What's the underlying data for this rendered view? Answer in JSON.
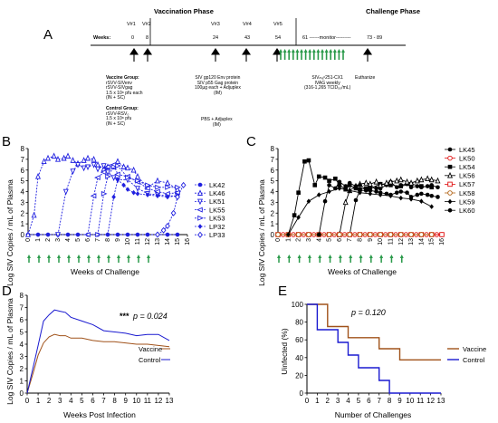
{
  "panel_a": {
    "label": "A",
    "vaccination_phase": "Vaccination Phase",
    "challenge_phase": "Challenge Phase",
    "weeks_label": "Weeks:",
    "vaccinations": [
      {
        "v": "V#1",
        "week": "0"
      },
      {
        "v": "V#2",
        "week": "8"
      },
      {
        "v": "V#3",
        "week": "24"
      },
      {
        "v": "V#4",
        "week": "43"
      },
      {
        "v": "V#5",
        "week": "54"
      }
    ],
    "monitor_text": "61 ------monitor---------",
    "euth_weeks": "73 - 89",
    "vaccine_group_title": "Vaccine Group:",
    "vaccine_group_lines": [
      "rSVV-SIVenv",
      "rSVV-SIVgag",
      "1.5 x 10⁸ pfu each",
      "(IN + SC)"
    ],
    "control_group_title": "Control Group:",
    "control_group_lines": [
      "rSVV-RSV₀",
      "1.5 x 10⁸ pfu",
      "(IN + SC)"
    ],
    "boost_vaccine_lines": [
      "SIV gp120 Env protein",
      "SIV p55 Gag protein",
      "100µg each + Adjuplex",
      "(IM)"
    ],
    "boost_control_lines": [
      "PBS + Adjuplex",
      "(IM)"
    ],
    "challenge_lines": [
      "SIVₘₐᶜ251-CX1",
      "IVAG weekly",
      "(316-1,265 TCID₅₀/mL)"
    ],
    "euthanize": "Euthanize"
  },
  "panel_b": {
    "label": "B",
    "ylabel": "Log SIV Copies / mL of Plasma",
    "xlabel": "Weeks of Challenge",
    "legend": [
      "LK42",
      "LK46",
      "LK51",
      "LK55",
      "LK53",
      "LP32",
      "LP33"
    ],
    "color": "#2020e0"
  },
  "panel_c": {
    "label": "C",
    "ylabel": "Log SIV Copies / mL of Plasma",
    "xlabel": "Weeks of Challenge",
    "legend": [
      "LK45",
      "LK50",
      "LK54",
      "LK56",
      "LK57",
      "LK58",
      "LK59",
      "LK60"
    ],
    "legend_colors": [
      "#000000",
      "#e01010",
      "#000000",
      "#000000",
      "#e01010",
      "#b06010",
      "#000000",
      "#000000"
    ]
  },
  "panel_d": {
    "label": "D",
    "ylabel": "Log SIV Copies / mL of Plasma",
    "xlabel": "Weeks Post Infection",
    "pvalue_stars": "***",
    "pvalue_text": "p = 0.024",
    "legend": [
      "Vaccine",
      "Control"
    ]
  },
  "panel_e": {
    "label": "E",
    "ylabel": "Uinfected (%)",
    "xlabel": "Number of Challenges",
    "pvalue_text": "p = 0.120",
    "legend": [
      "Vaccine",
      "Control"
    ]
  },
  "colors": {
    "vaccine_blue": "#2020e0",
    "control_black": "#000000",
    "brown": "#a0521a",
    "navy": "#1a1ad0",
    "arrow_green": "#2a9a4a"
  },
  "chart_data": [
    {
      "type": "line",
      "panel": "B",
      "ylabel": "Log SIV Copies / mL of Plasma",
      "xlabel": "Weeks of Challenge",
      "ylim": [
        0,
        8
      ],
      "xticks": [
        "0",
        "1",
        "2",
        "3",
        "4",
        "5",
        "6",
        "7",
        "8",
        "9",
        "10",
        "11",
        "12",
        "13",
        "14",
        "15",
        "16"
      ],
      "challenge_weeks": [
        0,
        1,
        2,
        3,
        4,
        5,
        6,
        7,
        8,
        9,
        10,
        11,
        12
      ],
      "series": [
        {
          "name": "LK42",
          "marker": "circle",
          "x": [
            0,
            1,
            2,
            3,
            4,
            5,
            6,
            7,
            8,
            9,
            10,
            11,
            12,
            13,
            14,
            15
          ],
          "y": [
            0,
            0,
            0,
            0,
            0,
            0,
            0,
            0,
            0,
            0,
            0,
            0,
            0,
            0,
            0,
            0
          ]
        },
        {
          "name": "LK46",
          "marker": "triangle-up",
          "x": [
            0,
            0.6,
            1,
            1.6,
            2,
            2.6,
            3,
            3.6,
            4,
            4.5,
            5,
            5.6,
            6,
            6.6,
            7,
            7.6,
            8,
            8.6,
            9,
            9.6,
            10,
            10.6,
            11,
            12,
            13,
            14,
            15
          ],
          "y": [
            0,
            1.8,
            5.4,
            6.8,
            7.1,
            7.3,
            7.0,
            7.1,
            7.3,
            6.9,
            6.6,
            6.9,
            7.1,
            7.0,
            6.5,
            6.1,
            6.3,
            6.3,
            6.8,
            6.3,
            6.2,
            6.0,
            5.4,
            4.4,
            5.0,
            4.8,
            4.2
          ]
        },
        {
          "name": "LK51",
          "marker": "triangle-down",
          "x": [
            3,
            3.8,
            4.5,
            5,
            5.6,
            6,
            6.6,
            7,
            7.6,
            8,
            8.6,
            9,
            10,
            11,
            12,
            13,
            14,
            15
          ],
          "y": [
            0,
            4.0,
            5.9,
            6.5,
            6.2,
            6.3,
            6.5,
            6.1,
            6.4,
            5.8,
            5.3,
            5.1,
            5.1,
            4.3,
            3.8,
            3.7,
            3.6,
            3.6
          ]
        },
        {
          "name": "LK55",
          "marker": "triangle-left",
          "x": [
            6,
            6.6,
            7,
            7.6,
            8,
            8.6,
            9,
            10,
            11,
            12,
            13,
            14,
            15
          ],
          "y": [
            0,
            3.6,
            5.3,
            5.8,
            6.3,
            6.5,
            5.6,
            5.4,
            4.9,
            4.3,
            4.0,
            3.8,
            3.9
          ]
        },
        {
          "name": "LK53",
          "marker": "triangle-right",
          "x": [
            7,
            7.6,
            8,
            8.6,
            9,
            10,
            11,
            12,
            13,
            14,
            15
          ],
          "y": [
            0,
            3.8,
            5.4,
            6.3,
            6.4,
            5.3,
            5.0,
            4.6,
            4.4,
            4.4,
            4.4
          ]
        },
        {
          "name": "LP32",
          "marker": "diamond",
          "x": [
            8,
            8.6,
            9,
            9.6,
            10,
            10.6,
            11,
            12,
            13,
            14,
            15
          ],
          "y": [
            0,
            3.5,
            5.1,
            4.6,
            4.2,
            3.9,
            3.8,
            3.7,
            3.6,
            3.5,
            3.6
          ]
        },
        {
          "name": "LP33",
          "marker": "diamond-open",
          "x": [
            13,
            13.6,
            14,
            14.6,
            15,
            15.6
          ],
          "y": [
            0,
            0.4,
            0.8,
            2.0,
            3.5,
            4.6
          ]
        }
      ]
    },
    {
      "type": "line",
      "panel": "C",
      "ylabel": "Log SIV Copies / mL of Plasma",
      "xlabel": "Weeks of Challenge",
      "ylim": [
        0,
        8
      ],
      "xticks": [
        "0",
        "1",
        "2",
        "3",
        "4",
        "5",
        "6",
        "7",
        "8",
        "9",
        "10",
        "11",
        "12",
        "13",
        "14",
        "15",
        "16"
      ],
      "challenge_weeks": [
        0,
        1,
        2,
        3,
        4,
        5,
        6,
        7,
        8,
        9,
        10,
        11,
        12
      ],
      "series": [
        {
          "name": "LK45",
          "marker": "circle",
          "x": [
            7,
            7.6,
            8,
            8.6,
            9,
            9.6,
            10,
            10.6,
            11,
            11.6,
            12,
            12.6,
            13,
            13.6,
            14,
            14.6,
            15,
            15.6
          ],
          "y": [
            0,
            3.2,
            4.1,
            4.1,
            4.4,
            4.3,
            4.3,
            4.6,
            4.9,
            4.4,
            4.6,
            4.7,
            4.4,
            4.5,
            4.4,
            4.5,
            4.6,
            4.4
          ]
        },
        {
          "name": "LK50",
          "marker": "circle-open",
          "x": [
            0,
            0.5,
            1,
            1.5,
            2,
            2.5,
            3,
            3.5,
            4,
            4.5,
            5,
            5.5,
            6,
            6.5,
            7,
            7.5,
            8,
            8.5,
            9,
            9.5,
            10,
            10.5,
            11,
            11.5,
            12,
            12.5,
            13,
            13.5,
            14,
            14.5,
            15,
            15.5,
            16
          ],
          "y": [
            0,
            0,
            0,
            0,
            0,
            0,
            0,
            0,
            0,
            0,
            0,
            0,
            0,
            0,
            0,
            0,
            0,
            0,
            0,
            0,
            0,
            0,
            0,
            0,
            0,
            0,
            0,
            0,
            0,
            0,
            0,
            0,
            0
          ]
        },
        {
          "name": "LK54",
          "marker": "square",
          "x": [
            1,
            1.6,
            2,
            2.6,
            3,
            3.6,
            4,
            4.6,
            5,
            5.6,
            6,
            6.6,
            7,
            7.6,
            8,
            8.6,
            9,
            10,
            11,
            12,
            13,
            14,
            15
          ],
          "y": [
            0,
            1.8,
            3.9,
            6.8,
            6.9,
            4.6,
            5.4,
            5.3,
            5.0,
            5.2,
            4.6,
            4.2,
            4.6,
            4.3,
            4.2,
            4.3,
            4.3,
            4.7,
            4.6,
            4.5,
            4.7,
            4.5,
            4.4
          ]
        },
        {
          "name": "LK56",
          "marker": "triangle-up",
          "x": [
            6,
            6.6,
            7,
            7.6,
            8,
            8.6,
            9,
            9.6,
            10,
            10.6,
            11,
            11.6,
            12,
            12.6,
            13,
            13.6,
            14,
            14.6,
            15,
            15.6
          ],
          "y": [
            0,
            3.0,
            4.1,
            4.5,
            4.7,
            4.8,
            4.7,
            4.9,
            4.6,
            4.8,
            4.9,
            5.0,
            5.1,
            4.9,
            4.8,
            5.0,
            5.1,
            5.2,
            5.1,
            5.0
          ]
        },
        {
          "name": "LK57",
          "marker": "square-open",
          "x": [
            0,
            1,
            2,
            3,
            4,
            5,
            6,
            7,
            8,
            9,
            10,
            11,
            12,
            13,
            14,
            15,
            16
          ],
          "y": [
            0,
            0,
            0,
            0,
            0,
            0,
            0,
            0,
            0,
            0,
            0,
            0,
            0,
            0,
            0,
            0,
            0
          ]
        },
        {
          "name": "LK58",
          "marker": "circle-open-brown",
          "x": [
            0,
            1,
            2,
            3,
            4,
            5,
            6,
            7,
            8,
            9,
            10,
            11,
            12,
            13,
            14,
            15
          ],
          "y": [
            0,
            0,
            0,
            0,
            0,
            0,
            0,
            0,
            0,
            0,
            0,
            0,
            0,
            0,
            0,
            0
          ]
        },
        {
          "name": "LK59",
          "marker": "diamond",
          "x": [
            1,
            2,
            3,
            4,
            5,
            6,
            7,
            8,
            9,
            10,
            11,
            12,
            13,
            14,
            15
          ],
          "y": [
            0,
            1.6,
            3.1,
            3.7,
            4.0,
            4.3,
            4.1,
            3.9,
            3.8,
            3.7,
            3.6,
            3.4,
            3.3,
            3.1,
            2.6
          ]
        },
        {
          "name": "LK60",
          "marker": "circle",
          "x": [
            4,
            4.6,
            5,
            5.6,
            6,
            6.6,
            7,
            7.6,
            8,
            8.6,
            9,
            9.6,
            10,
            10.6,
            11,
            11.6,
            12,
            12.6,
            13,
            13.6,
            14,
            14.6,
            15,
            15.6
          ],
          "y": [
            0,
            3.1,
            4.6,
            4.3,
            4.9,
            4.5,
            4.8,
            4.5,
            4.6,
            4.2,
            4.1,
            4.0,
            3.9,
            3.8,
            3.7,
            3.9,
            4.0,
            3.9,
            3.5,
            3.7,
            3.8,
            3.7,
            3.6,
            3.5
          ]
        }
      ]
    },
    {
      "type": "line",
      "panel": "D",
      "ylabel": "Log SIV Copies / mL of Plasma",
      "xlabel": "Weeks Post Infection",
      "ylim": [
        0,
        8
      ],
      "xticks": [
        "0",
        "1",
        "2",
        "3",
        "4",
        "5",
        "6",
        "7",
        "8",
        "9",
        "10",
        "11",
        "12",
        "13"
      ],
      "series": [
        {
          "name": "Vaccine",
          "color": "#a0521a",
          "x": [
            0,
            0.6,
            1,
            1.5,
            2,
            2.5,
            3,
            3.5,
            4,
            5,
            6,
            7,
            8,
            9,
            10,
            11,
            12,
            13
          ],
          "y": [
            0,
            1.8,
            3.1,
            4.1,
            4.6,
            4.8,
            4.7,
            4.7,
            4.5,
            4.5,
            4.3,
            4.2,
            4.2,
            4.1,
            4.0,
            4.0,
            3.9,
            3.8
          ]
        },
        {
          "name": "Control",
          "color": "#1a1ad0",
          "x": [
            0,
            0.6,
            1,
            1.5,
            2,
            2.5,
            3,
            3.5,
            4,
            5,
            6,
            7,
            8,
            9,
            10,
            11,
            12,
            13
          ],
          "y": [
            0,
            2.3,
            3.9,
            5.9,
            6.4,
            6.8,
            6.7,
            6.6,
            6.2,
            5.9,
            5.6,
            5.1,
            5.0,
            4.9,
            4.7,
            4.8,
            4.8,
            4.3
          ]
        }
      ]
    },
    {
      "type": "line",
      "panel": "E",
      "ylabel": "Uinfected (%)",
      "xlabel": "Number of Challenges",
      "ylim": [
        0,
        100
      ],
      "xticks": [
        "0",
        "1",
        "2",
        "3",
        "4",
        "5",
        "6",
        "7",
        "8",
        "9",
        "10",
        "11",
        "12",
        "13"
      ],
      "series": [
        {
          "name": "Vaccine",
          "color": "#a0521a",
          "x": [
            0,
            2,
            4,
            7,
            9,
            13
          ],
          "y": [
            100,
            75,
            62.5,
            50,
            37.5,
            37.5
          ]
        },
        {
          "name": "Control",
          "color": "#1a1ad0",
          "x": [
            0,
            1,
            3,
            4,
            5,
            7,
            8,
            13
          ],
          "y": [
            100,
            71.4,
            57.1,
            42.9,
            28.6,
            14.3,
            0,
            0
          ]
        }
      ]
    }
  ]
}
